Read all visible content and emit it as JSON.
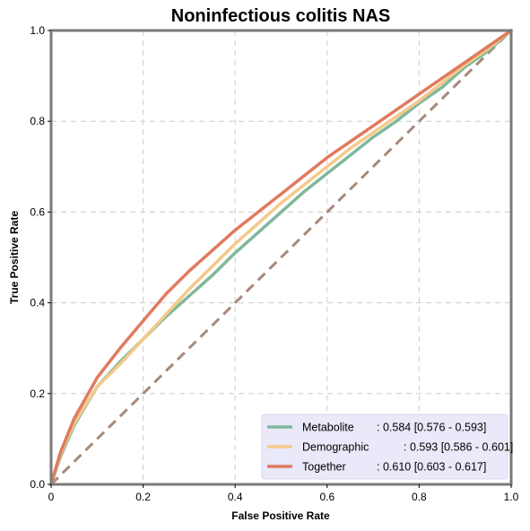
{
  "chart_data": {
    "type": "line",
    "title": "Noninfectious colitis NAS",
    "xlabel": "False Positive Rate",
    "ylabel": "True Positive Rate",
    "xlim": [
      0,
      1
    ],
    "ylim": [
      0,
      1
    ],
    "x_ticks": [
      "0",
      "0.2",
      "0.4",
      "0.6",
      "0.8",
      "1.0"
    ],
    "y_ticks": [
      "0.0",
      "0.2",
      "0.4",
      "0.6",
      "0.8",
      "1.0"
    ],
    "grid": true,
    "legend_position": "lower-right",
    "series": [
      {
        "name": "Metabolite",
        "label_value": ": 0.584 [0.576 - 0.593]",
        "color": "#7fb89a",
        "x": [
          0,
          0.02,
          0.05,
          0.1,
          0.15,
          0.2,
          0.25,
          0.3,
          0.35,
          0.4,
          0.45,
          0.5,
          0.55,
          0.6,
          0.65,
          0.7,
          0.75,
          0.8,
          0.85,
          0.9,
          0.95,
          1.0
        ],
        "y": [
          0,
          0.06,
          0.13,
          0.215,
          0.27,
          0.32,
          0.37,
          0.415,
          0.46,
          0.51,
          0.555,
          0.6,
          0.645,
          0.685,
          0.725,
          0.765,
          0.8,
          0.84,
          0.875,
          0.92,
          0.955,
          1.0
        ]
      },
      {
        "name": "Demographic",
        "label_value": ": 0.593 [0.586 - 0.601]",
        "color": "#f5c98a",
        "x": [
          0,
          0.02,
          0.05,
          0.1,
          0.15,
          0.2,
          0.25,
          0.3,
          0.35,
          0.4,
          0.45,
          0.5,
          0.55,
          0.6,
          0.65,
          0.7,
          0.75,
          0.8,
          0.85,
          0.9,
          0.95,
          1.0
        ],
        "y": [
          0,
          0.065,
          0.135,
          0.215,
          0.265,
          0.32,
          0.375,
          0.43,
          0.48,
          0.53,
          0.575,
          0.62,
          0.66,
          0.7,
          0.74,
          0.775,
          0.81,
          0.845,
          0.885,
          0.925,
          0.96,
          1.0
        ]
      },
      {
        "name": "Together",
        "label_value": ": 0.610 [0.603 - 0.617]",
        "color": "#e07a5f",
        "x": [
          0,
          0.02,
          0.05,
          0.1,
          0.15,
          0.2,
          0.25,
          0.3,
          0.35,
          0.4,
          0.45,
          0.5,
          0.55,
          0.6,
          0.65,
          0.7,
          0.75,
          0.8,
          0.85,
          0.9,
          0.95,
          1.0
        ],
        "y": [
          0,
          0.07,
          0.145,
          0.235,
          0.3,
          0.36,
          0.42,
          0.47,
          0.515,
          0.56,
          0.6,
          0.64,
          0.68,
          0.72,
          0.755,
          0.79,
          0.825,
          0.86,
          0.895,
          0.93,
          0.965,
          1.0
        ]
      }
    ],
    "reference_line": {
      "x": [
        0,
        1
      ],
      "y": [
        0,
        1
      ],
      "color": "#a68a7b",
      "style": "dashed"
    }
  }
}
